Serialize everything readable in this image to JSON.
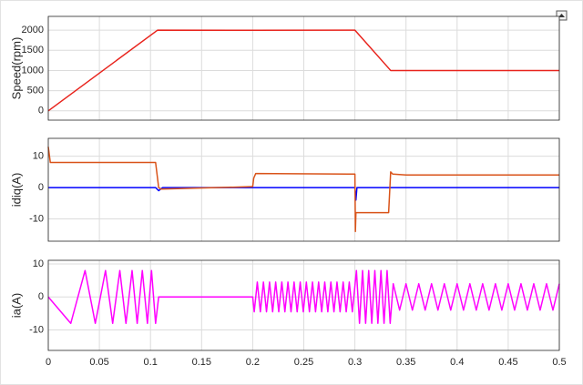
{
  "chart_data": [
    {
      "type": "line",
      "ylabel": "Speed(rpm)",
      "x": [
        0,
        0.107,
        0.2,
        0.3,
        0.335,
        0.5
      ],
      "values": [
        0,
        2000,
        1995,
        2000,
        1000,
        1000
      ],
      "color": "#e8231c",
      "xlim": [
        0,
        0.5
      ],
      "xticks": [
        0,
        0.05,
        0.1,
        0.15,
        0.2,
        0.25,
        0.3,
        0.35,
        0.4,
        0.45,
        0.5
      ],
      "ylim": [
        -230,
        2340
      ],
      "yticks": [
        0,
        500,
        1000,
        1500,
        2000
      ],
      "grid": true
    },
    {
      "type": "line",
      "ylabel": "idiq(A)",
      "series": [
        {
          "color": "#0000ff",
          "x": [
            0,
            0.105,
            0.108,
            0.112,
            0.2,
            0.3,
            0.301,
            0.302,
            0.5
          ],
          "values": [
            0,
            0,
            -1,
            0,
            0,
            0,
            -4,
            0,
            0
          ]
        },
        {
          "color": "#d95319",
          "x": [
            0,
            0.002,
            0.105,
            0.108,
            0.11,
            0.2,
            0.201,
            0.203,
            0.3,
            0.3005,
            0.301,
            0.303,
            0.333,
            0.335,
            0.337,
            0.35,
            0.5
          ],
          "values": [
            13,
            8,
            8,
            0,
            -0.5,
            0.3,
            3,
            4.5,
            4.3,
            -14,
            -8,
            -8,
            -8,
            5,
            4.3,
            4,
            4
          ]
        }
      ],
      "xlim": [
        0,
        0.5
      ],
      "xticks": [
        0,
        0.05,
        0.1,
        0.15,
        0.2,
        0.25,
        0.3,
        0.35,
        0.4,
        0.45,
        0.5
      ],
      "ylim": [
        -17.1,
        15.7
      ],
      "yticks": [
        -10,
        0,
        10
      ],
      "grid": true
    },
    {
      "type": "line",
      "ylabel": "ia(A)",
      "x": [
        0,
        0.022,
        0.036,
        0.046,
        0.056,
        0.063,
        0.07,
        0.076,
        0.082,
        0.087,
        0.092,
        0.097,
        0.101,
        0.105,
        0.108,
        0.2,
        0.2015,
        0.2045,
        0.2075,
        0.2105,
        0.2135,
        0.2165,
        0.2195,
        0.2225,
        0.2255,
        0.2285,
        0.2315,
        0.2345,
        0.2375,
        0.2405,
        0.2435,
        0.2465,
        0.2495,
        0.2525,
        0.2555,
        0.2585,
        0.2615,
        0.2645,
        0.2675,
        0.2705,
        0.2735,
        0.2765,
        0.2795,
        0.2825,
        0.2855,
        0.2885,
        0.2915,
        0.2945,
        0.2975,
        0.3015,
        0.3045,
        0.3075,
        0.3105,
        0.3135,
        0.3165,
        0.3195,
        0.3225,
        0.3255,
        0.3285,
        0.3315,
        0.3345,
        0.3375,
        0.34375,
        0.35,
        0.35625,
        0.3625,
        0.36875,
        0.375,
        0.38125,
        0.3875,
        0.39375,
        0.4,
        0.40625,
        0.4125,
        0.41875,
        0.425,
        0.43125,
        0.4375,
        0.44375,
        0.45,
        0.45625,
        0.4625,
        0.46875,
        0.475,
        0.48125,
        0.4875,
        0.49375,
        0.5
      ],
      "values": [
        0,
        -8,
        8,
        -8,
        8,
        -8,
        8,
        -8,
        8,
        -8,
        8,
        -8,
        8,
        -8,
        0,
        0,
        -4.5,
        4.5,
        -4.5,
        4.5,
        -4.5,
        4.5,
        -4.5,
        4.5,
        -4.5,
        4.5,
        -4.5,
        4.5,
        -4.5,
        4.5,
        -4.5,
        4.5,
        -4.5,
        4.5,
        -4.5,
        4.5,
        -4.5,
        4.5,
        -4.5,
        4.5,
        -4.5,
        4.5,
        -4.5,
        4.5,
        -4.5,
        4.5,
        -4.5,
        4.5,
        -4.5,
        8,
        -8,
        8,
        -8,
        8,
        -8,
        8,
        -8,
        8,
        -8,
        8,
        -8,
        4,
        -4,
        4,
        -4,
        4,
        -4,
        4,
        -4,
        4,
        -4,
        4,
        -4,
        4,
        -4,
        4,
        -4,
        4,
        -4,
        4,
        -4,
        4,
        -4,
        4,
        -4,
        4,
        -4,
        4
      ],
      "color": "#ff00ff",
      "xlim": [
        0,
        0.5
      ],
      "xticks": [
        0,
        0.05,
        0.1,
        0.15,
        0.2,
        0.25,
        0.3,
        0.35,
        0.4,
        0.45,
        0.5
      ],
      "ylim": [
        -16.2,
        11.1
      ],
      "yticks": [
        -10,
        0,
        10
      ],
      "grid": true
    }
  ]
}
